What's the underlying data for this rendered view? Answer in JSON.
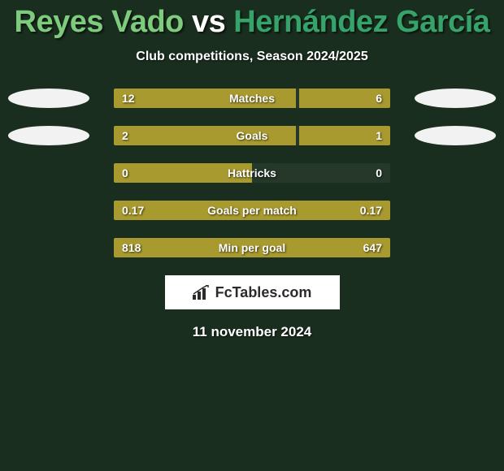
{
  "background_color": "#1a2e1f",
  "title": {
    "player1": "Reyes Vado",
    "vs": "vs",
    "player2": "Hernández García",
    "color1": "#7ecb7e",
    "color_vs": "#ffffff",
    "color2": "#36a36b"
  },
  "subtitle": "Club competitions, Season 2024/2025",
  "bar_color": "#a89a2e",
  "oval_color": "#f2f2f2",
  "rows": [
    {
      "label": "Matches",
      "left_val": "12",
      "right_val": "6",
      "left_pct": 66,
      "right_pct": 33,
      "ovals": true
    },
    {
      "label": "Goals",
      "left_val": "2",
      "right_val": "1",
      "left_pct": 66,
      "right_pct": 33,
      "ovals": true
    },
    {
      "label": "Hattricks",
      "left_val": "0",
      "right_val": "0",
      "left_pct": 50,
      "right_pct": 0,
      "ovals": false
    },
    {
      "label": "Goals per match",
      "left_val": "0.17",
      "right_val": "0.17",
      "left_pct": 50,
      "right_pct": 50,
      "ovals": false
    },
    {
      "label": "Min per goal",
      "left_val": "818",
      "right_val": "647",
      "left_pct": 55,
      "right_pct": 45,
      "ovals": false
    }
  ],
  "logo_text": "FcTables.com",
  "date": "11 november 2024"
}
